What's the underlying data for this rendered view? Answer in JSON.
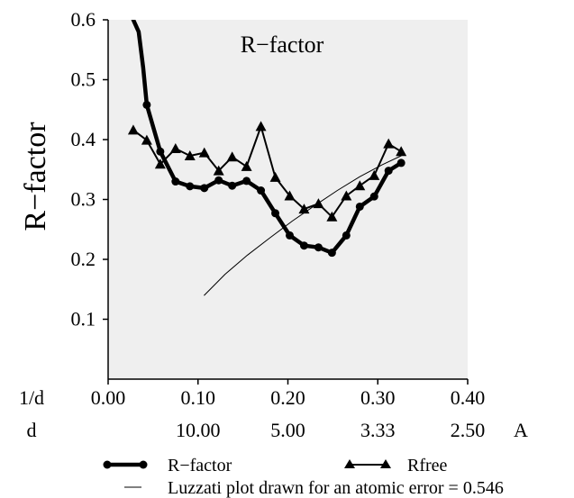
{
  "chart_data": {
    "type": "line",
    "title": "R−factor",
    "ylabel": "R−factor",
    "x_axis_label": "1/d",
    "secondary_x_axis_label": "d",
    "secondary_x_unit": "A",
    "xlim": [
      0.0,
      0.4
    ],
    "ylim": [
      0.0,
      0.6
    ],
    "x_ticks": [
      "0.00",
      "0.10",
      "0.20",
      "0.30",
      "0.40"
    ],
    "x_tick_values": [
      0.0,
      0.1,
      0.2,
      0.3,
      0.4
    ],
    "d_ticks": [
      "10.00",
      "5.00",
      "3.33",
      "2.50"
    ],
    "d_tick_values": [
      0.1,
      0.2,
      0.3,
      0.4
    ],
    "y_ticks": [
      "0.1",
      "0.2",
      "0.3",
      "0.4",
      "0.5",
      "0.6"
    ],
    "y_tick_values": [
      0.1,
      0.2,
      0.3,
      0.4,
      0.5,
      0.6
    ],
    "grid": false,
    "plot_background": "#efefef",
    "series": [
      {
        "name": "R−factor",
        "marker": "circle",
        "style": "thick",
        "color": "#000000",
        "points": [
          [
            0.043,
            0.458
          ],
          [
            0.058,
            0.38
          ],
          [
            0.075,
            0.33
          ],
          [
            0.091,
            0.322
          ],
          [
            0.107,
            0.319
          ],
          [
            0.123,
            0.332
          ],
          [
            0.138,
            0.323
          ],
          [
            0.154,
            0.331
          ],
          [
            0.17,
            0.315
          ],
          [
            0.186,
            0.277
          ],
          [
            0.202,
            0.24
          ],
          [
            0.218,
            0.223
          ],
          [
            0.234,
            0.22
          ],
          [
            0.249,
            0.211
          ],
          [
            0.265,
            0.24
          ],
          [
            0.28,
            0.288
          ],
          [
            0.296,
            0.305
          ],
          [
            0.312,
            0.348
          ],
          [
            0.326,
            0.361
          ]
        ],
        "line_only_head": [
          [
            0.028,
            0.6
          ],
          [
            0.034,
            0.58
          ],
          [
            0.039,
            0.52
          ]
        ]
      },
      {
        "name": "Rfree",
        "marker": "triangle",
        "style": "thin",
        "color": "#000000",
        "points": [
          [
            0.028,
            0.416
          ],
          [
            0.043,
            0.399
          ],
          [
            0.058,
            0.359
          ],
          [
            0.075,
            0.385
          ],
          [
            0.091,
            0.373
          ],
          [
            0.107,
            0.378
          ],
          [
            0.123,
            0.348
          ],
          [
            0.138,
            0.371
          ],
          [
            0.154,
            0.355
          ],
          [
            0.17,
            0.422
          ],
          [
            0.186,
            0.337
          ],
          [
            0.202,
            0.306
          ],
          [
            0.218,
            0.284
          ],
          [
            0.234,
            0.293
          ],
          [
            0.249,
            0.271
          ],
          [
            0.265,
            0.306
          ],
          [
            0.28,
            0.323
          ],
          [
            0.296,
            0.34
          ],
          [
            0.312,
            0.393
          ],
          [
            0.326,
            0.38
          ]
        ]
      },
      {
        "name": "Luzzati plot drawn for an atomic error = 0.546",
        "marker": "none",
        "style": "hairline",
        "color": "#000000",
        "points": [
          [
            0.107,
            0.14
          ],
          [
            0.13,
            0.175
          ],
          [
            0.155,
            0.207
          ],
          [
            0.18,
            0.236
          ],
          [
            0.205,
            0.264
          ],
          [
            0.23,
            0.29
          ],
          [
            0.255,
            0.315
          ],
          [
            0.28,
            0.338
          ],
          [
            0.305,
            0.358
          ],
          [
            0.326,
            0.373
          ]
        ]
      }
    ],
    "legend": {
      "placement": "bottom",
      "entries": [
        {
          "label": "R−factor",
          "marker": "circle"
        },
        {
          "label": "Rfree",
          "marker": "triangle"
        },
        {
          "label": "Luzzati plot drawn for an atomic error = 0.546",
          "marker": "none"
        }
      ]
    }
  }
}
